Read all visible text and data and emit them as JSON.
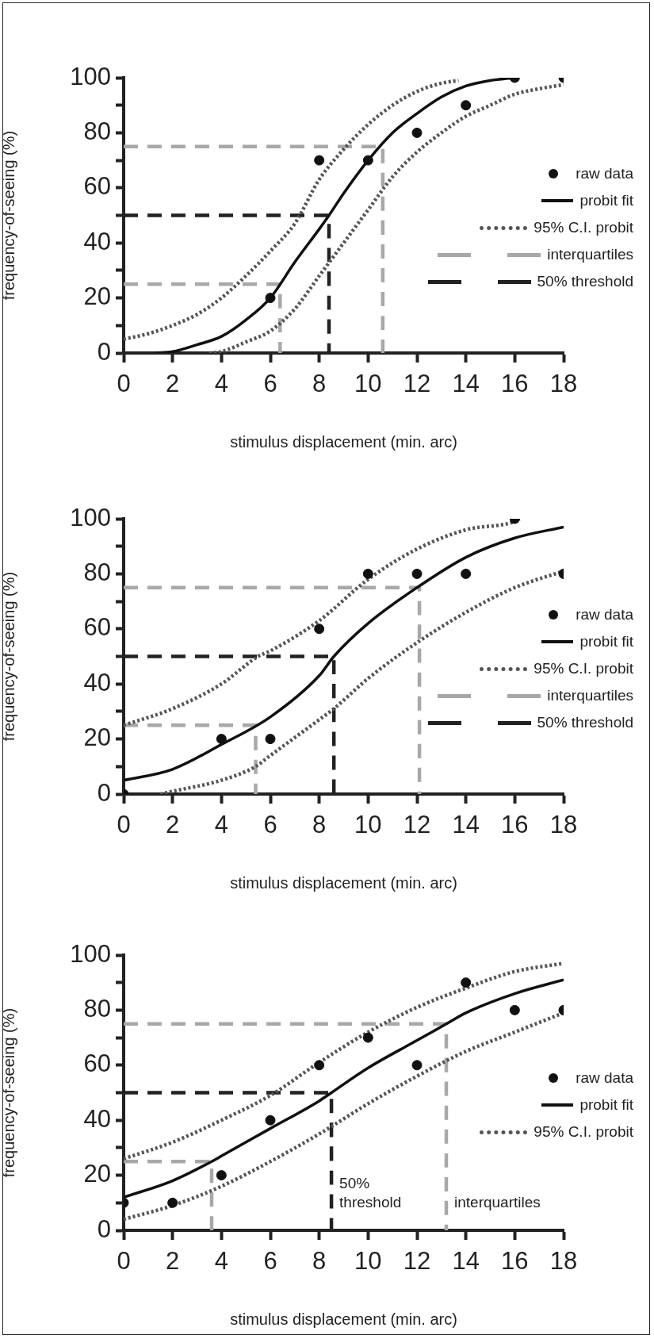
{
  "chart_data": [
    {
      "type": "line",
      "xlabel": "stimulus displacement (min. arc)",
      "ylabel": "frequency-of-seeing (%)",
      "xlim": [
        0,
        18
      ],
      "xticks": [
        0,
        2,
        4,
        6,
        8,
        10,
        12,
        14,
        16,
        18
      ],
      "ylim": [
        0,
        100
      ],
      "yticks": [
        0,
        {
          "value": 10,
          "label": null
        },
        20,
        {
          "value": 30,
          "label": null
        },
        40,
        {
          "value": 50,
          "label": null
        },
        60,
        {
          "value": 70,
          "label": null
        },
        80,
        {
          "value": 90,
          "label": null
        },
        100
      ],
      "grid": false,
      "legend": "right",
      "series": [
        {
          "name": "raw data",
          "type": "scatter",
          "marker": "circle",
          "color": "#111111",
          "x": [
            6,
            8,
            10,
            12,
            14,
            16,
            18
          ],
          "values": [
            20,
            70,
            70,
            80,
            90,
            100,
            100
          ]
        },
        {
          "name": "probit fit",
          "line_style": "solid",
          "color": "#111111",
          "x": [
            1.3,
            2,
            3,
            4,
            5,
            6,
            7,
            8,
            8.4,
            9,
            10,
            11,
            12,
            13,
            14,
            15,
            16
          ],
          "values": [
            0,
            0.5,
            3,
            6,
            12,
            20,
            33,
            45,
            50,
            58,
            70,
            80,
            87,
            93,
            97,
            99,
            100
          ]
        },
        {
          "name": "95% C.I. probit",
          "line_style": "dotted",
          "color": "#555555",
          "x": [
            0,
            1,
            2,
            3,
            4,
            5,
            6,
            7,
            8,
            9,
            10,
            11,
            12,
            13,
            13.7
          ],
          "values": [
            5,
            7,
            10,
            14,
            20,
            28,
            37,
            47,
            63,
            74,
            83,
            90,
            95,
            98,
            99
          ]
        },
        {
          "line_style": "dotted",
          "color": "#555555",
          "x": [
            3.5,
            4,
            5,
            6,
            7,
            8,
            9,
            10,
            11,
            12,
            13,
            14,
            15,
            16,
            17,
            18
          ],
          "values": [
            0,
            0.5,
            4,
            8,
            16,
            28,
            40,
            52,
            64,
            73,
            80,
            86,
            90,
            94,
            96,
            97.5
          ]
        },
        {
          "name": "interquartiles",
          "line_style": "dashed",
          "color": "#a8a8a8",
          "x": [
            0,
            6.4,
            6.4
          ],
          "values": [
            25,
            25,
            0
          ]
        },
        {
          "line_style": "dashed",
          "color": "#a8a8a8",
          "x": [
            0,
            10.6,
            10.6
          ],
          "values": [
            75,
            75,
            0
          ]
        },
        {
          "name": "50% threshold",
          "line_style": "dashed",
          "color": "#222222",
          "x": [
            0,
            8.4,
            8.4
          ],
          "values": [
            50,
            50,
            0
          ]
        }
      ]
    },
    {
      "type": "line",
      "xlabel": "stimulus displacement (min. arc)",
      "ylabel": "frequency-of-seeing (%)",
      "xlim": [
        0,
        18
      ],
      "xticks": [
        0,
        2,
        4,
        6,
        8,
        10,
        12,
        14,
        16,
        18
      ],
      "ylim": [
        0,
        100
      ],
      "yticks": [
        0,
        {
          "value": 10,
          "label": null
        },
        20,
        {
          "value": 30,
          "label": null
        },
        40,
        {
          "value": 50,
          "label": null
        },
        60,
        {
          "value": 70,
          "label": null
        },
        80,
        {
          "value": 90,
          "label": null
        },
        100
      ],
      "grid": false,
      "legend": "right",
      "series": [
        {
          "name": "raw data",
          "type": "scatter",
          "marker": "circle",
          "color": "#111111",
          "x": [
            0,
            4,
            6,
            8,
            10,
            12,
            14,
            16,
            18
          ],
          "values": [
            0,
            20,
            20,
            60,
            80,
            80,
            80,
            100,
            80
          ]
        },
        {
          "name": "probit fit",
          "line_style": "solid",
          "color": "#111111",
          "x": [
            0,
            2,
            4,
            6,
            8,
            8.6,
            10,
            12,
            14,
            16,
            18
          ],
          "values": [
            5,
            9,
            18,
            28,
            43,
            50,
            62,
            75,
            86,
            93,
            97
          ]
        },
        {
          "name": "95% C.I. probit",
          "line_style": "dotted",
          "color": "#555555",
          "x": [
            0,
            2,
            4,
            5.5,
            6,
            8,
            10,
            12,
            14,
            16,
            16.2
          ],
          "values": [
            25,
            31,
            40,
            50,
            52,
            63,
            78,
            89,
            96,
            99,
            100
          ]
        },
        {
          "line_style": "dotted",
          "color": "#555555",
          "x": [
            1.5,
            2,
            4,
            5.4,
            6,
            8,
            8.6,
            10,
            12,
            14,
            16,
            18
          ],
          "values": [
            0,
            1,
            5,
            10,
            14,
            27,
            31,
            42,
            55,
            66,
            75,
            81
          ]
        },
        {
          "name": "interquartiles",
          "line_style": "dashed",
          "color": "#a8a8a8",
          "x": [
            0,
            5.4,
            5.4
          ],
          "values": [
            25,
            25,
            0
          ]
        },
        {
          "line_style": "dashed",
          "color": "#a8a8a8",
          "x": [
            0,
            12.1,
            12.1
          ],
          "values": [
            75,
            75,
            0
          ]
        },
        {
          "name": "50% threshold",
          "line_style": "dashed",
          "color": "#222222",
          "x": [
            0,
            8.6,
            8.6
          ],
          "values": [
            50,
            50,
            0
          ]
        }
      ]
    },
    {
      "type": "line",
      "xlabel": "stimulus displacement (min. arc)",
      "ylabel": "frequency-of-seeing (%)",
      "xlim": [
        0,
        18
      ],
      "xticks": [
        0,
        2,
        4,
        6,
        8,
        10,
        12,
        14,
        16,
        18
      ],
      "ylim": [
        0,
        100
      ],
      "yticks": [
        0,
        {
          "value": 10,
          "label": null
        },
        20,
        {
          "value": 30,
          "label": null
        },
        40,
        {
          "value": 50,
          "label": null
        },
        60,
        {
          "value": 70,
          "label": null
        },
        80,
        {
          "value": 90,
          "label": null
        },
        100
      ],
      "grid": false,
      "legend": "right",
      "annotations": [
        {
          "text": "50%\nthreshold",
          "x": 8.5,
          "y": 17
        },
        {
          "text": "interquartiles",
          "x": 13.2,
          "y": 10
        }
      ],
      "series": [
        {
          "name": "raw data",
          "type": "scatter",
          "marker": "circle",
          "color": "#111111",
          "x": [
            0,
            2,
            4,
            6,
            8,
            10,
            12,
            14,
            16,
            18
          ],
          "values": [
            10,
            10,
            20,
            40,
            60,
            70,
            60,
            90,
            80,
            80
          ]
        },
        {
          "name": "probit fit",
          "line_style": "solid",
          "color": "#111111",
          "x": [
            0,
            2,
            3.6,
            4,
            6,
            8,
            8.5,
            10,
            12,
            13.2,
            14,
            16,
            18
          ],
          "values": [
            12,
            18,
            25,
            27,
            37,
            47,
            50,
            59,
            69,
            75,
            79,
            86,
            91
          ]
        },
        {
          "name": "95% C.I. probit",
          "line_style": "dotted",
          "color": "#555555",
          "x": [
            0,
            2,
            4,
            6,
            8,
            10,
            12,
            14,
            16,
            18
          ],
          "values": [
            26,
            32,
            40,
            49,
            61,
            72,
            81,
            88,
            94,
            97
          ]
        },
        {
          "line_style": "dotted",
          "color": "#555555",
          "x": [
            0,
            2,
            4,
            6,
            8,
            10,
            12,
            14,
            16,
            18
          ],
          "values": [
            4,
            9,
            16,
            25,
            35,
            46,
            56,
            65,
            72,
            79
          ]
        },
        {
          "line_style": "dashed",
          "color": "#a8a8a8",
          "x": [
            0,
            3.6,
            3.6
          ],
          "values": [
            25,
            25,
            0
          ]
        },
        {
          "line_style": "dashed",
          "color": "#a8a8a8",
          "x": [
            0,
            13.2,
            13.2
          ],
          "values": [
            75,
            75,
            0
          ]
        },
        {
          "line_style": "dashed",
          "color": "#222222",
          "x": [
            0,
            8.5,
            8.5
          ],
          "values": [
            50,
            50,
            0
          ]
        }
      ]
    }
  ]
}
